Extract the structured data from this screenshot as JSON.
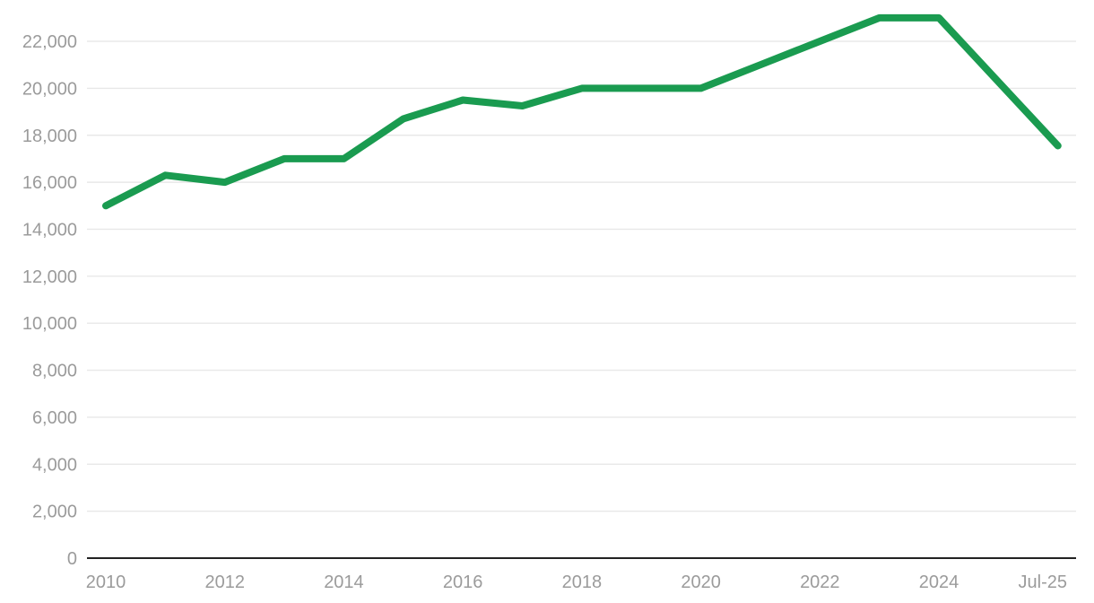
{
  "colors": {
    "line": "#1a9b50",
    "gridline": "#e8e8e8",
    "zero_axis": "#222222",
    "tick_label": "#9b9b9b",
    "background": "#ffffff"
  },
  "chart_data": {
    "type": "line",
    "title": "",
    "xlabel": "",
    "ylabel": "",
    "grid": true,
    "legend": false,
    "categories": [
      "2010",
      "2011",
      "2012",
      "2013",
      "2014",
      "2015",
      "2016",
      "2017",
      "2018",
      "2019",
      "2020",
      "2021",
      "2022",
      "2023",
      "2024",
      "Jul-25"
    ],
    "values": [
      15000,
      16300,
      16000,
      17000,
      17000,
      18700,
      19500,
      19250,
      20000,
      20000,
      20000,
      21000,
      22000,
      23000,
      23000,
      17550
    ],
    "x_index": [
      0,
      1,
      2,
      3,
      4,
      5,
      6,
      7,
      8,
      9,
      10,
      11,
      12,
      13,
      14,
      16
    ],
    "x_ticks": [
      {
        "label": "2010",
        "index": 0
      },
      {
        "label": "2012",
        "index": 2
      },
      {
        "label": "2014",
        "index": 4
      },
      {
        "label": "2016",
        "index": 6
      },
      {
        "label": "2018",
        "index": 8
      },
      {
        "label": "2020",
        "index": 10
      },
      {
        "label": "2022",
        "index": 12
      },
      {
        "label": "2024",
        "index": 14
      },
      {
        "label": "Jul-25",
        "index": 16
      }
    ],
    "y_ticks": [
      {
        "label": "0",
        "value": 0
      },
      {
        "label": "2,000",
        "value": 2000
      },
      {
        "label": "4,000",
        "value": 4000
      },
      {
        "label": "6,000",
        "value": 6000
      },
      {
        "label": "8,000",
        "value": 8000
      },
      {
        "label": "10,000",
        "value": 10000
      },
      {
        "label": "12,000",
        "value": 12000
      },
      {
        "label": "14,000",
        "value": 14000
      },
      {
        "label": "16,000",
        "value": 16000
      },
      {
        "label": "18,000",
        "value": 18000
      },
      {
        "label": "20,000",
        "value": 20000
      },
      {
        "label": "22,000",
        "value": 22000
      }
    ],
    "ylim": [
      0,
      23000
    ]
  }
}
